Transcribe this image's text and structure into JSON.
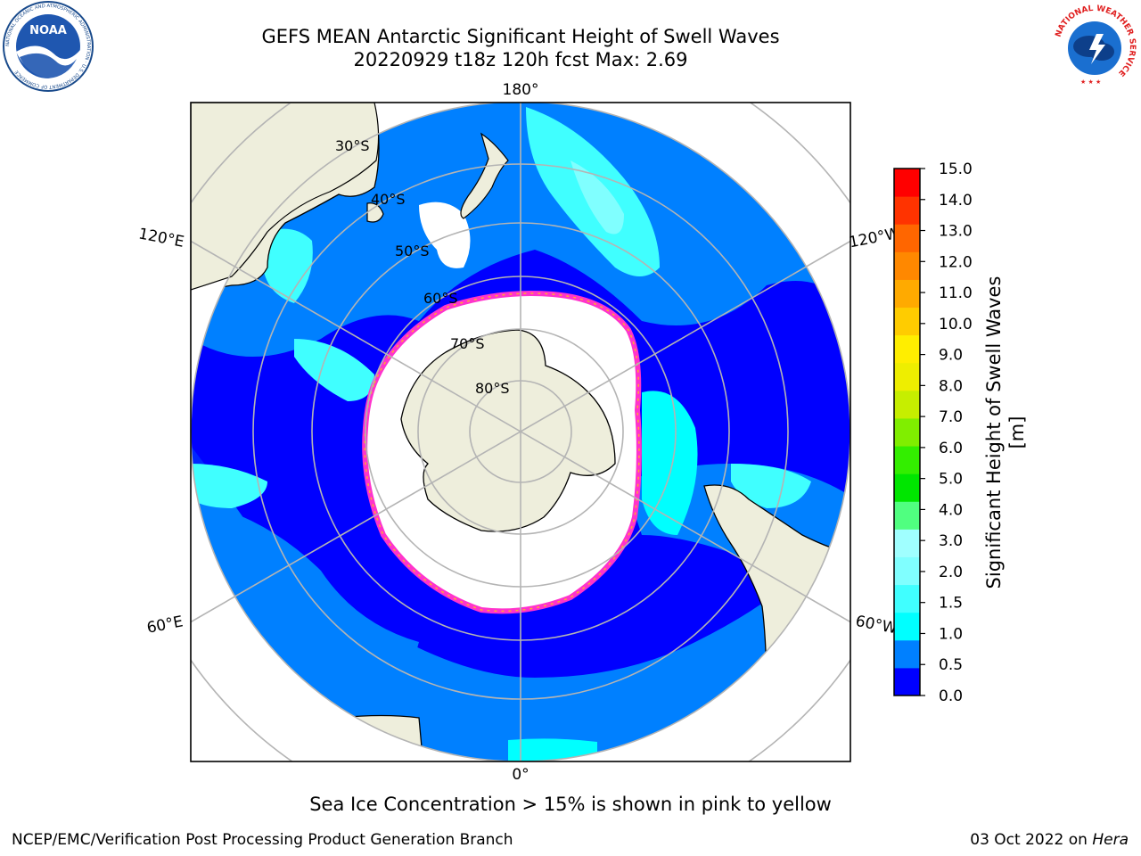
{
  "title": {
    "line1": "GEFS MEAN Antarctic Significant Height of Swell Waves",
    "line2": "20220929 t18z 120h fcst   Max: 2.69"
  },
  "map": {
    "projection": "south polar stereographic",
    "longitude_labels": [
      "180°",
      "120°E",
      "120°W",
      "60°E",
      "60°W",
      "0°"
    ],
    "latitude_labels": [
      "30°S",
      "40°S",
      "50°S",
      "60°S",
      "70°S",
      "80°S"
    ],
    "colors": {
      "land": "#eeeedc",
      "sea_ice": "#ffffff",
      "ice_edge": [
        "#ff33cc",
        "#ffaa33"
      ],
      "grid": "#b4b4b4"
    }
  },
  "colorbar": {
    "label": "Significant Height of Swell Waves [m]",
    "ticks": [
      "0.0",
      "0.5",
      "1.0",
      "1.5",
      "2.0",
      "3.0",
      "4.0",
      "5.0",
      "6.0",
      "7.0",
      "8.0",
      "9.0",
      "10.0",
      "11.0",
      "12.0",
      "13.0",
      "14.0",
      "15.0"
    ],
    "colors": [
      "#0000ff",
      "#0080ff",
      "#00ffff",
      "#40ffff",
      "#80ffff",
      "#a0ffff",
      "#50ff80",
      "#00e600",
      "#33ee00",
      "#80ee00",
      "#c6ee00",
      "#eeee00",
      "#ffee00",
      "#ffcc00",
      "#ffaa00",
      "#ff8800",
      "#ff6600",
      "#ff3300",
      "#ff0000"
    ]
  },
  "note": "Sea Ice Concentration > 15% is shown in pink to yellow",
  "footer": {
    "left": "NCEP/EMC/Verification Post Processing Product Generation Branch",
    "right_date": "03 Oct 2022 on ",
    "right_host": "Hera"
  },
  "logos": {
    "noaa": {
      "text": "NOAA",
      "ring_text": "NATIONAL OCEANIC AND ATMOSPHERIC ADMINISTRATION · U.S. DEPARTMENT OF COMMERCE"
    },
    "nws": {
      "ring_text": "NATIONAL WEATHER SERVICE"
    }
  }
}
